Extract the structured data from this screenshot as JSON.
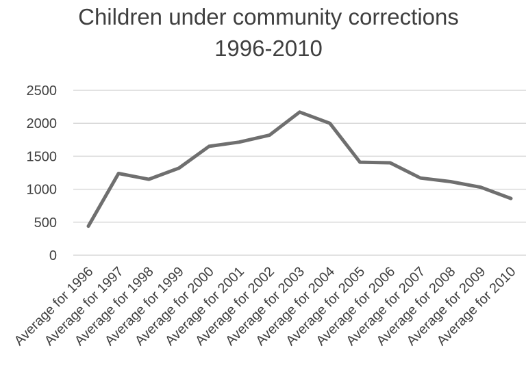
{
  "chart_data": {
    "type": "line",
    "title_lines": [
      "Children under community corrections",
      "1996-2010"
    ],
    "xlabel": "",
    "ylabel": "",
    "categories": [
      "Average for 1996",
      "Average for 1997",
      "Average for 1998",
      "Average for 1999",
      "Average for 2000",
      "Average for 2001",
      "Average for 2002",
      "Average for 2003",
      "Average for 2004",
      "Average for 2005",
      "Average for 2006",
      "Average for 2007",
      "Average for 2008",
      "Average for 2009",
      "Average for 2010"
    ],
    "series": [
      {
        "values": [
          440,
          1240,
          1150,
          1320,
          1650,
          1715,
          1820,
          2170,
          2000,
          1410,
          1400,
          1170,
          1115,
          1030,
          860
        ],
        "color": "#6f6f6f"
      }
    ],
    "ylim": [
      0,
      2500
    ],
    "yticks": [
      "0",
      "500",
      "1000",
      "1500",
      "2000",
      "2500"
    ],
    "grid": true,
    "legend": "none"
  }
}
